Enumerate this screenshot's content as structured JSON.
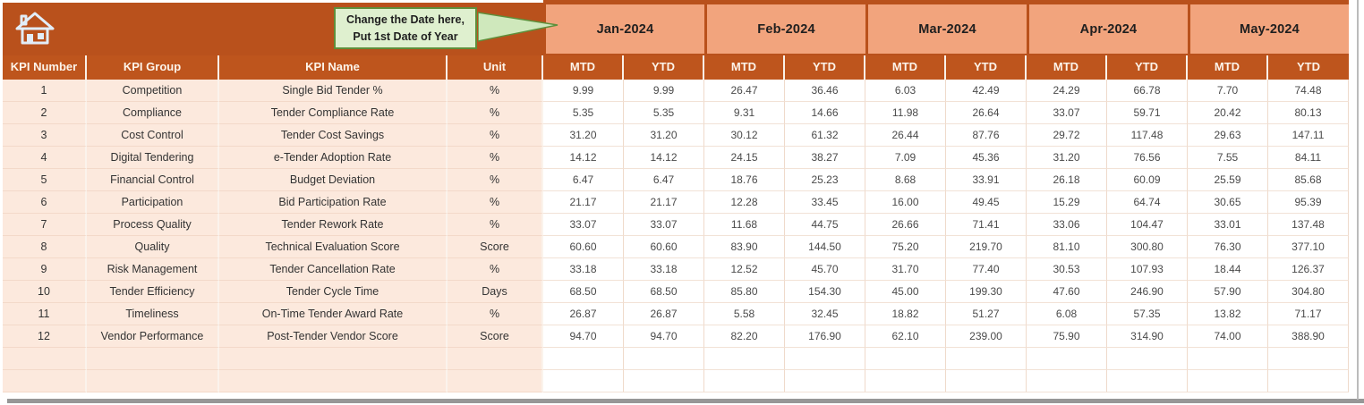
{
  "callout": {
    "line1": "Change the Date here,",
    "line2": "Put 1st Date of Year"
  },
  "months": [
    "Jan-2024",
    "Feb-2024",
    "Mar-2024",
    "Apr-2024",
    "May-2024"
  ],
  "period_headers": [
    "MTD",
    "YTD"
  ],
  "table": {
    "column_headers": [
      "KPI Number",
      "KPI Group",
      "KPI Name",
      "Unit"
    ],
    "rows": [
      {
        "num": "1",
        "group": "Competition",
        "name": "Single Bid Tender %",
        "unit": "%",
        "values": [
          "9.99",
          "9.99",
          "26.47",
          "36.46",
          "6.03",
          "42.49",
          "24.29",
          "66.78",
          "7.70",
          "74.48"
        ]
      },
      {
        "num": "2",
        "group": "Compliance",
        "name": "Tender Compliance Rate",
        "unit": "%",
        "values": [
          "5.35",
          "5.35",
          "9.31",
          "14.66",
          "11.98",
          "26.64",
          "33.07",
          "59.71",
          "20.42",
          "80.13"
        ]
      },
      {
        "num": "3",
        "group": "Cost Control",
        "name": "Tender Cost Savings",
        "unit": "%",
        "values": [
          "31.20",
          "31.20",
          "30.12",
          "61.32",
          "26.44",
          "87.76",
          "29.72",
          "117.48",
          "29.63",
          "147.11"
        ]
      },
      {
        "num": "4",
        "group": "Digital Tendering",
        "name": "e-Tender Adoption Rate",
        "unit": "%",
        "values": [
          "14.12",
          "14.12",
          "24.15",
          "38.27",
          "7.09",
          "45.36",
          "31.20",
          "76.56",
          "7.55",
          "84.11"
        ]
      },
      {
        "num": "5",
        "group": "Financial Control",
        "name": "Budget Deviation",
        "unit": "%",
        "values": [
          "6.47",
          "6.47",
          "18.76",
          "25.23",
          "8.68",
          "33.91",
          "26.18",
          "60.09",
          "25.59",
          "85.68"
        ]
      },
      {
        "num": "6",
        "group": "Participation",
        "name": "Bid Participation Rate",
        "unit": "%",
        "values": [
          "21.17",
          "21.17",
          "12.28",
          "33.45",
          "16.00",
          "49.45",
          "15.29",
          "64.74",
          "30.65",
          "95.39"
        ]
      },
      {
        "num": "7",
        "group": "Process Quality",
        "name": "Tender Rework Rate",
        "unit": "%",
        "values": [
          "33.07",
          "33.07",
          "11.68",
          "44.75",
          "26.66",
          "71.41",
          "33.06",
          "104.47",
          "33.01",
          "137.48"
        ]
      },
      {
        "num": "8",
        "group": "Quality",
        "name": "Technical Evaluation Score",
        "unit": "Score",
        "values": [
          "60.60",
          "60.60",
          "83.90",
          "144.50",
          "75.20",
          "219.70",
          "81.10",
          "300.80",
          "76.30",
          "377.10"
        ]
      },
      {
        "num": "9",
        "group": "Risk Management",
        "name": "Tender Cancellation Rate",
        "unit": "%",
        "values": [
          "33.18",
          "33.18",
          "12.52",
          "45.70",
          "31.70",
          "77.40",
          "30.53",
          "107.93",
          "18.44",
          "126.37"
        ]
      },
      {
        "num": "10",
        "group": "Tender Efficiency",
        "name": "Tender Cycle Time",
        "unit": "Days",
        "values": [
          "68.50",
          "68.50",
          "85.80",
          "154.30",
          "45.00",
          "199.30",
          "47.60",
          "246.90",
          "57.90",
          "304.80"
        ]
      },
      {
        "num": "11",
        "group": "Timeliness",
        "name": "On-Time Tender Award Rate",
        "unit": "%",
        "values": [
          "26.87",
          "26.87",
          "5.58",
          "32.45",
          "18.82",
          "51.27",
          "6.08",
          "57.35",
          "13.82",
          "71.17"
        ]
      },
      {
        "num": "12",
        "group": "Vendor Performance",
        "name": "Post-Tender Vendor Score",
        "unit": "Score",
        "values": [
          "94.70",
          "94.70",
          "82.20",
          "176.90",
          "62.10",
          "239.00",
          "75.90",
          "314.90",
          "74.00",
          "388.90"
        ]
      }
    ],
    "empty_row_count": 2
  },
  "colors": {
    "banner": "#B9511C",
    "header_row": "#BE551D",
    "month_header_bg": "#F2A47D",
    "row_bg": "#FCE9DD",
    "callout_bg": "#DFF0CF",
    "callout_border": "#5F8F3B",
    "header_text": "#FDF4EA"
  }
}
